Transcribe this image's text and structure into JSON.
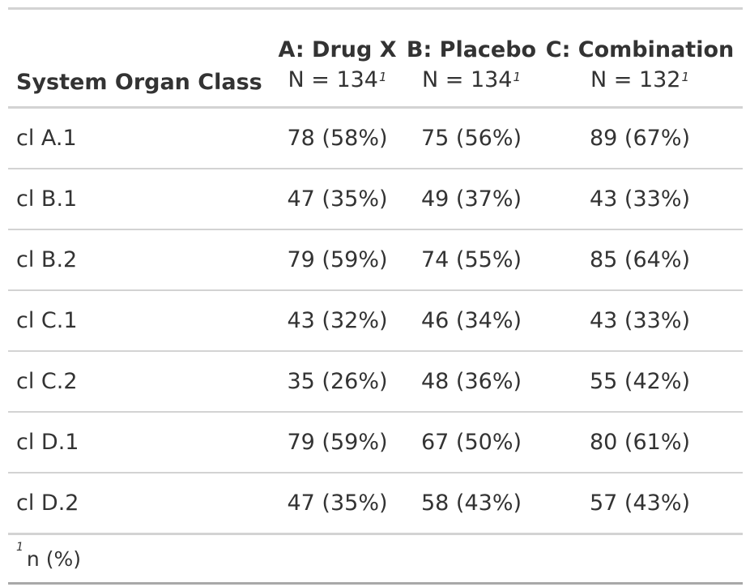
{
  "table": {
    "stub_header": "System Organ Class",
    "columns": [
      {
        "arm": "A: Drug X",
        "n": "N = 134",
        "footnote_mark": "1"
      },
      {
        "arm": "B: Placebo",
        "n": "N = 134",
        "footnote_mark": "1"
      },
      {
        "arm": "C: Combination",
        "n": "N = 132",
        "footnote_mark": "1"
      }
    ],
    "rows": [
      {
        "label": "cl A.1",
        "values": [
          "78 (58%)",
          "75 (56%)",
          "89 (67%)"
        ]
      },
      {
        "label": "cl B.1",
        "values": [
          "47 (35%)",
          "49 (37%)",
          "43 (33%)"
        ]
      },
      {
        "label": "cl B.2",
        "values": [
          "79 (59%)",
          "74 (55%)",
          "85 (64%)"
        ]
      },
      {
        "label": "cl C.1",
        "values": [
          "43 (32%)",
          "46 (34%)",
          "43 (33%)"
        ]
      },
      {
        "label": "cl C.2",
        "values": [
          "35 (26%)",
          "48 (36%)",
          "55 (42%)"
        ]
      },
      {
        "label": "cl D.1",
        "values": [
          "79 (59%)",
          "67 (50%)",
          "80 (61%)"
        ]
      },
      {
        "label": "cl D.2",
        "values": [
          "47 (35%)",
          "58 (43%)",
          "57 (43%)"
        ]
      }
    ],
    "footnote": {
      "mark": "1",
      "text": "n (%)"
    }
  }
}
